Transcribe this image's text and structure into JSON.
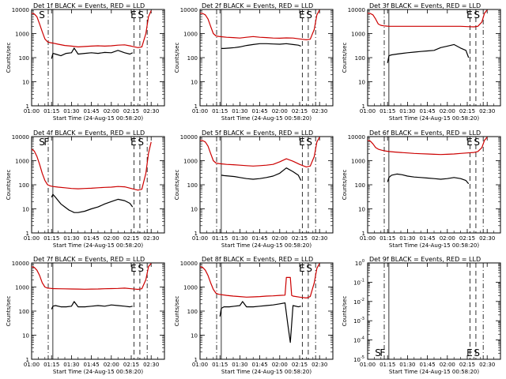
{
  "figure": {
    "date_label": "Start Time (24-Aug-15 00:58:20)",
    "ylabel": "Counts/sec",
    "legend_suffix": " BLACK = Events, RED = LLD",
    "x_ticks": [
      "01:00",
      "01:15",
      "01:30",
      "01:45",
      "02:00",
      "02:15",
      "02:30"
    ],
    "x_tick_minutes": [
      60,
      75,
      90,
      105,
      120,
      135,
      150
    ],
    "x_range_minutes": [
      60,
      160
    ],
    "y_ticks": [
      "1",
      "10",
      "100",
      "1000",
      "10000"
    ],
    "y_ticks_exp": [
      "10^0",
      "10^-1",
      "10^-2",
      "10^-3",
      "10^-4",
      "10^-5"
    ],
    "markers": [
      {
        "label": "S",
        "minute": 72.5,
        "style": "dashdot"
      },
      {
        "label": "F",
        "minute": 76,
        "style": "solid"
      },
      {
        "label": "E",
        "minute": 137,
        "style": "dashed"
      },
      {
        "label": "S",
        "minute": 141.5,
        "style": "dashed"
      },
      {
        "label": "",
        "minute": 147,
        "style": "dashdot"
      }
    ],
    "colors": {
      "events": "#000000",
      "lld": "#cc0000"
    }
  },
  "chart_data": [
    {
      "type": "line",
      "title": "Det 1f BLACK = Events, RED = LLD",
      "detector": "Det 1f",
      "marker_labels": [
        "S",
        "",
        "",
        "E",
        "S"
      ],
      "xlabel": "Start Time (24-Aug-15 00:58:20)",
      "ylabel": "Counts/sec",
      "ylim": [
        1,
        10000
      ],
      "yscale": "log",
      "series": [
        {
          "name": "Events",
          "x": [
            74,
            75,
            76,
            78,
            82,
            86,
            90,
            92,
            95,
            100,
            105,
            110,
            115,
            120,
            125,
            130,
            134,
            136
          ],
          "values": [
            null,
            90,
            150,
            140,
            120,
            150,
            160,
            250,
            140,
            150,
            160,
            150,
            165,
            160,
            200,
            160,
            140,
            160
          ]
        },
        {
          "name": "LLD",
          "x": [
            60,
            62,
            64,
            66,
            68,
            70,
            72,
            74,
            76,
            80,
            85,
            90,
            95,
            100,
            105,
            110,
            115,
            120,
            125,
            130,
            135,
            140,
            143,
            146,
            148,
            150
          ],
          "values": [
            7000,
            6500,
            5000,
            2500,
            1200,
            600,
            450,
            420,
            400,
            360,
            320,
            300,
            280,
            290,
            300,
            310,
            300,
            310,
            330,
            340,
            300,
            260,
            280,
            1000,
            5000,
            9000
          ]
        }
      ]
    },
    {
      "type": "line",
      "title": "Det 2f BLACK = Events, RED = LLD",
      "detector": "Det 2f",
      "marker_labels": [
        "",
        "",
        "",
        "E",
        "S"
      ],
      "xlabel": "Start Time (24-Aug-15 00:58:20)",
      "ylabel": "Counts/sec",
      "ylim": [
        1,
        10000
      ],
      "yscale": "log",
      "series": [
        {
          "name": "Events",
          "x": [
            75,
            76,
            78,
            82,
            86,
            90,
            95,
            100,
            105,
            110,
            115,
            120,
            125,
            130,
            134,
            136
          ],
          "values": [
            null,
            240,
            240,
            250,
            260,
            280,
            320,
            350,
            380,
            380,
            370,
            360,
            380,
            350,
            330,
            300
          ]
        },
        {
          "name": "LLD",
          "x": [
            60,
            62,
            64,
            66,
            68,
            70,
            72,
            74,
            76,
            80,
            85,
            90,
            95,
            100,
            105,
            110,
            115,
            120,
            125,
            130,
            135,
            140,
            143,
            146,
            148,
            150
          ],
          "values": [
            7000,
            6800,
            6000,
            4000,
            2000,
            1000,
            800,
            760,
            740,
            700,
            680,
            650,
            700,
            750,
            700,
            680,
            650,
            640,
            660,
            650,
            600,
            550,
            580,
            1500,
            6000,
            9500
          ]
        }
      ]
    },
    {
      "type": "line",
      "title": "Det 3f BLACK = Events, RED = LLD",
      "detector": "Det 3f",
      "marker_labels": [
        "",
        "",
        "",
        "E",
        "S"
      ],
      "xlabel": "Start Time (24-Aug-15 00:58:20)",
      "ylabel": "Counts/sec",
      "ylim": [
        1,
        10000
      ],
      "yscale": "log",
      "series": [
        {
          "name": "Events",
          "x": [
            74,
            75,
            76,
            78,
            82,
            86,
            90,
            95,
            100,
            105,
            110,
            115,
            120,
            125,
            130,
            134,
            136
          ],
          "values": [
            null,
            60,
            120,
            130,
            140,
            150,
            160,
            170,
            180,
            190,
            200,
            260,
            300,
            350,
            250,
            200,
            100
          ]
        },
        {
          "name": "LLD",
          "x": [
            60,
            62,
            64,
            66,
            68,
            70,
            72,
            74,
            76,
            80,
            90,
            100,
            110,
            120,
            130,
            135,
            140,
            143,
            146,
            148,
            150
          ],
          "values": [
            7000,
            6800,
            6000,
            4000,
            2500,
            2200,
            2100,
            2050,
            2000,
            2000,
            2000,
            2000,
            2000,
            2000,
            2000,
            1950,
            1900,
            2000,
            3000,
            7000,
            9500
          ]
        }
      ]
    },
    {
      "type": "line",
      "title": "Det 4f BLACK = Events, RED = LLD",
      "detector": "Det 4f",
      "marker_labels": [
        "S",
        "F",
        "",
        "E",
        "S"
      ],
      "xlabel": "Start Time (24-Aug-15 00:58:20)",
      "ylabel": "Counts/sec",
      "ylim": [
        1,
        10000
      ],
      "yscale": "log",
      "series": [
        {
          "name": "Events",
          "x": [
            74,
            75,
            76,
            78,
            80,
            82,
            85,
            88,
            90,
            92,
            95,
            100,
            105,
            110,
            115,
            120,
            125,
            130,
            134,
            136
          ],
          "values": [
            null,
            30,
            40,
            30,
            22,
            16,
            12,
            9,
            8,
            7,
            7,
            8,
            10,
            12,
            16,
            20,
            25,
            22,
            17,
            12
          ]
        },
        {
          "name": "LLD",
          "x": [
            60,
            62,
            64,
            66,
            68,
            70,
            72,
            74,
            76,
            80,
            85,
            90,
            95,
            100,
            105,
            110,
            115,
            120,
            125,
            130,
            135,
            140,
            143,
            146,
            148,
            150
          ],
          "values": [
            3000,
            2500,
            1500,
            700,
            300,
            150,
            100,
            90,
            85,
            80,
            75,
            70,
            68,
            70,
            72,
            75,
            78,
            80,
            85,
            82,
            70,
            60,
            65,
            300,
            2000,
            6000
          ]
        }
      ]
    },
    {
      "type": "line",
      "title": "Det 5f BLACK = Events, RED = LLD",
      "detector": "Det 5f",
      "marker_labels": [
        "",
        "",
        "",
        "E",
        "S"
      ],
      "xlabel": "Start Time (24-Aug-15 00:58:20)",
      "ylabel": "Counts/sec",
      "ylim": [
        1,
        10000
      ],
      "yscale": "log",
      "series": [
        {
          "name": "Events",
          "x": [
            75,
            76,
            78,
            82,
            86,
            90,
            95,
            100,
            105,
            110,
            115,
            120,
            125,
            130,
            134,
            136
          ],
          "values": [
            null,
            250,
            240,
            230,
            220,
            200,
            180,
            170,
            180,
            200,
            230,
            300,
            500,
            350,
            250,
            150
          ]
        },
        {
          "name": "LLD",
          "x": [
            60,
            62,
            64,
            66,
            68,
            70,
            72,
            74,
            76,
            80,
            85,
            90,
            95,
            100,
            105,
            110,
            115,
            120,
            125,
            130,
            135,
            140,
            143,
            146,
            148,
            150
          ],
          "values": [
            7000,
            6800,
            6000,
            4000,
            2000,
            1000,
            800,
            760,
            740,
            700,
            680,
            650,
            620,
            600,
            620,
            650,
            700,
            900,
            1200,
            950,
            700,
            550,
            600,
            1500,
            6000,
            9500
          ]
        }
      ]
    },
    {
      "type": "line",
      "title": "Det 6f BLACK = Events, RED = LLD",
      "detector": "Det 6f",
      "marker_labels": [
        "",
        "",
        "",
        "E",
        "S"
      ],
      "xlabel": "Start Time (24-Aug-15 00:58:20)",
      "ylabel": "Counts/sec",
      "ylim": [
        1,
        10000
      ],
      "yscale": "log",
      "series": [
        {
          "name": "Events",
          "x": [
            74,
            75,
            76,
            78,
            82,
            86,
            90,
            95,
            100,
            105,
            110,
            115,
            120,
            125,
            130,
            134,
            136
          ],
          "values": [
            null,
            130,
            200,
            250,
            280,
            260,
            230,
            210,
            200,
            190,
            180,
            170,
            180,
            200,
            180,
            150,
            110
          ]
        },
        {
          "name": "LLD",
          "x": [
            60,
            62,
            64,
            66,
            68,
            70,
            72,
            74,
            76,
            80,
            85,
            90,
            95,
            100,
            105,
            110,
            115,
            120,
            125,
            130,
            135,
            140,
            143,
            146,
            148,
            150
          ],
          "values": [
            7000,
            6500,
            5000,
            3500,
            3000,
            2800,
            2600,
            2500,
            2400,
            2300,
            2200,
            2100,
            2000,
            1950,
            1900,
            1850,
            1800,
            1850,
            1900,
            2000,
            2100,
            2200,
            2400,
            3500,
            7000,
            9500
          ]
        }
      ]
    },
    {
      "type": "line",
      "title": "Det 7f BLACK = Events, RED = LLD",
      "detector": "Det 7f",
      "marker_labels": [
        "",
        "",
        "",
        "E",
        "S"
      ],
      "xlabel": "Start Time (24-Aug-15 00:58:20)",
      "ylabel": "Counts/sec",
      "ylim": [
        1,
        10000
      ],
      "yscale": "log",
      "series": [
        {
          "name": "Events",
          "x": [
            74,
            75,
            76,
            78,
            82,
            86,
            90,
            92,
            95,
            100,
            105,
            110,
            115,
            120,
            125,
            130,
            134,
            136
          ],
          "values": [
            null,
            120,
            160,
            170,
            150,
            150,
            160,
            250,
            150,
            150,
            160,
            170,
            160,
            180,
            170,
            160,
            150,
            160
          ]
        },
        {
          "name": "LLD",
          "x": [
            60,
            62,
            64,
            66,
            68,
            70,
            72,
            74,
            76,
            80,
            85,
            90,
            95,
            100,
            105,
            110,
            115,
            120,
            125,
            130,
            135,
            140,
            143,
            146,
            148,
            150
          ],
          "values": [
            7000,
            6500,
            5000,
            3000,
            1500,
            1000,
            900,
            880,
            860,
            850,
            840,
            830,
            820,
            810,
            820,
            830,
            850,
            860,
            870,
            900,
            850,
            800,
            850,
            2000,
            7000,
            9500
          ]
        }
      ]
    },
    {
      "type": "line",
      "title": "Det 8f BLACK = Events, RED = LLD",
      "detector": "Det 8f",
      "marker_labels": [
        "",
        "",
        "",
        "E",
        "S"
      ],
      "xlabel": "Start Time (24-Aug-15 00:58:20)",
      "ylabel": "Counts/sec",
      "ylim": [
        1,
        10000
      ],
      "yscale": "log",
      "series": [
        {
          "name": "Events",
          "x": [
            74,
            75,
            76,
            78,
            82,
            86,
            90,
            92,
            95,
            100,
            105,
            110,
            115,
            120,
            124,
            126,
            128,
            130,
            134,
            136
          ],
          "values": [
            null,
            60,
            130,
            150,
            150,
            160,
            170,
            250,
            150,
            150,
            160,
            170,
            180,
            200,
            220,
            30,
            5,
            170,
            150,
            160
          ]
        },
        {
          "name": "LLD",
          "x": [
            60,
            62,
            64,
            66,
            68,
            70,
            72,
            74,
            76,
            80,
            85,
            90,
            95,
            100,
            105,
            110,
            115,
            120,
            124,
            125,
            128,
            129,
            130,
            135,
            140,
            143,
            146,
            148,
            150
          ],
          "values": [
            7000,
            6500,
            5000,
            3000,
            1500,
            800,
            550,
            500,
            480,
            450,
            420,
            400,
            380,
            390,
            400,
            420,
            430,
            450,
            460,
            2500,
            2500,
            450,
            420,
            380,
            350,
            400,
            1500,
            6000,
            9500
          ]
        }
      ]
    },
    {
      "type": "line",
      "title": "Det 9f BLACK = Events, RED = LLD",
      "detector": "Det 9f",
      "marker_labels": [
        "S",
        "F",
        "",
        "E",
        "S"
      ],
      "xlabel": "Start Time (24-Aug-15 00:58:20)",
      "ylabel": "Counts/sec",
      "ylim": [
        1e-05,
        1
      ],
      "yscale": "log",
      "exp_ticks": true,
      "series": []
    }
  ]
}
